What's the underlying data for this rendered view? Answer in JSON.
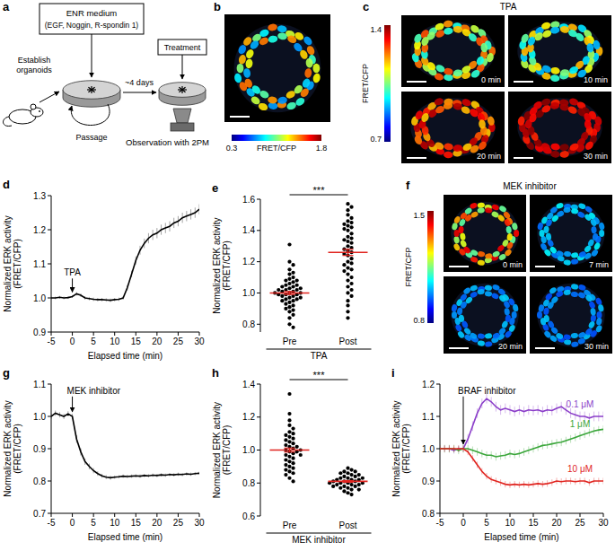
{
  "diagram": {
    "panel": "a",
    "medium": [
      "ENR medium",
      "(EGF, Noggin, R-spondin 1)"
    ],
    "establish": [
      "Establish",
      "organoids"
    ],
    "passage": "Passage",
    "interval": "~4 days",
    "treatment": "Treatment",
    "observation": "Observation with 2PM"
  },
  "images": [
    {
      "panel": "b",
      "colorbar": {
        "label": "FRET/CFP",
        "range": [
          0.3,
          1.8
        ],
        "ticks": [
          0.3,
          1.8
        ]
      }
    },
    {
      "panel": "c",
      "title": "TPA",
      "colorbar": {
        "label": "FRET/CFP",
        "range": [
          0.7,
          1.4
        ],
        "ticks": [
          0.7,
          1.4
        ]
      },
      "frames": [
        "0 min",
        "10 min",
        "20 min",
        "30 min"
      ]
    },
    {
      "panel": "f",
      "title": "MEK inhibitor",
      "colorbar": {
        "label": "FRET/CFP",
        "range": [
          0.8,
          1.5
        ],
        "ticks": [
          0.8,
          1.5
        ]
      },
      "frames": [
        "0 min",
        "7 min",
        "20 min",
        "30 min"
      ]
    }
  ],
  "chart_data": [
    {
      "panel": "d",
      "type": "line",
      "x": [
        -5,
        -4,
        -3,
        -2,
        -1,
        0,
        1,
        2,
        3,
        4,
        5,
        6,
        7,
        8,
        9,
        10,
        11,
        12,
        13,
        14,
        15,
        16,
        17,
        18,
        19,
        20,
        21,
        22,
        23,
        24,
        25,
        26,
        27,
        28,
        29,
        30
      ],
      "series": [
        {
          "color": "#000000",
          "values": [
            1.0,
            1.0,
            1.002,
            1.0,
            1.001,
            1.004,
            1.012,
            1.008,
            1.0,
            0.998,
            0.996,
            0.995,
            0.995,
            0.994,
            0.993,
            0.995,
            0.996,
            1.0,
            1.03,
            1.07,
            1.11,
            1.14,
            1.16,
            1.175,
            1.185,
            1.19,
            1.2,
            1.205,
            1.21,
            1.22,
            1.225,
            1.235,
            1.24,
            1.245,
            1.25,
            1.26
          ],
          "errors": [
            0.004,
            0.004,
            0.004,
            0.004,
            0.004,
            0.004,
            0.005,
            0.005,
            0.005,
            0.005,
            0.005,
            0.005,
            0.005,
            0.005,
            0.005,
            0.005,
            0.005,
            0.005,
            0.008,
            0.01,
            0.012,
            0.013,
            0.014,
            0.015,
            0.015,
            0.015,
            0.015,
            0.015,
            0.015,
            0.015,
            0.015,
            0.015,
            0.015,
            0.015,
            0.015,
            0.015
          ]
        }
      ],
      "xlim": [
        -5,
        30
      ],
      "ylim": [
        0.9,
        1.3
      ],
      "xticks": [
        -5,
        0,
        5,
        10,
        15,
        20,
        25,
        30
      ],
      "yticks": [
        0.9,
        {
          "value": 1,
          "label": "1.0"
        },
        1.1,
        1.2,
        1.3
      ],
      "x_label": "Elapsed time (min)",
      "y_label": "Normalized ERK activity",
      "y_label_2": "(FRET/CFP)",
      "annotations": [
        {
          "text": "TPA",
          "x": 0,
          "y": 1.065
        }
      ]
    },
    {
      "panel": "e",
      "type": "dot",
      "color": "#000000",
      "categories": [
        "Pre",
        "Post"
      ],
      "values": [
        [
          1.31,
          1.2,
          1.18,
          1.15,
          1.13,
          1.12,
          1.1,
          1.09,
          1.08,
          1.08,
          1.07,
          1.06,
          1.05,
          1.05,
          1.04,
          1.04,
          1.03,
          1.03,
          1.02,
          1.02,
          1.02,
          1.01,
          1.01,
          1.0,
          1.0,
          1.0,
          0.99,
          0.99,
          0.99,
          0.98,
          0.98,
          0.97,
          0.97,
          0.96,
          0.96,
          0.95,
          0.95,
          0.94,
          0.93,
          0.92,
          0.91,
          0.9,
          0.89,
          0.88,
          0.86,
          0.84,
          0.8,
          0.78
        ],
        [
          1.57,
          1.55,
          1.53,
          1.5,
          1.48,
          1.46,
          1.45,
          1.44,
          1.43,
          1.42,
          1.41,
          1.4,
          1.38,
          1.36,
          1.35,
          1.34,
          1.33,
          1.32,
          1.3,
          1.29,
          1.28,
          1.27,
          1.26,
          1.25,
          1.24,
          1.22,
          1.2,
          1.19,
          1.18,
          1.16,
          1.15,
          1.14,
          1.12,
          1.1,
          1.08,
          1.06,
          1.04,
          1.02,
          1.0,
          0.98,
          0.95,
          0.92,
          0.88,
          0.84
        ]
      ],
      "means": [
        1.0,
        1.26
      ],
      "errors": [
        0.01,
        0.02
      ],
      "ylim": [
        0.75,
        1.6
      ],
      "yticks": [
        0.8,
        {
          "value": 1,
          "label": "1.0"
        },
        1.2,
        1.4,
        1.6
      ],
      "x_label": "TPA",
      "y_label": "Normalized ERK activity",
      "y_label_2": "(FRET/CFP)",
      "annotations": [
        {
          "text": "***"
        }
      ]
    },
    {
      "panel": "g",
      "type": "line",
      "x": [
        -5,
        -4,
        -3,
        -2,
        -1,
        0,
        1,
        2,
        3,
        4,
        5,
        6,
        7,
        8,
        9,
        10,
        11,
        12,
        13,
        14,
        15,
        16,
        17,
        18,
        19,
        20,
        21,
        22,
        23,
        24,
        25,
        26,
        27,
        28,
        29,
        30
      ],
      "series": [
        {
          "color": "#000000",
          "values": [
            1.0,
            1.01,
            1.005,
            1.0,
            1.008,
            1.0,
            0.93,
            0.89,
            0.86,
            0.845,
            0.832,
            0.823,
            0.816,
            0.812,
            0.81,
            0.812,
            0.813,
            0.815,
            0.814,
            0.815,
            0.816,
            0.815,
            0.817,
            0.816,
            0.818,
            0.817,
            0.819,
            0.818,
            0.82,
            0.819,
            0.821,
            0.82,
            0.822,
            0.821,
            0.823,
            0.824
          ],
          "errors": [
            0.008,
            0.008,
            0.008,
            0.008,
            0.008,
            0.008,
            0.012,
            0.011,
            0.01,
            0.009,
            0.008,
            0.007,
            0.006,
            0.006,
            0.006,
            0.005,
            0.005,
            0.005,
            0.005,
            0.005,
            0.005,
            0.005,
            0.005,
            0.005,
            0.005,
            0.005,
            0.005,
            0.005,
            0.005,
            0.005,
            0.005,
            0.005,
            0.005,
            0.005,
            0.005,
            0.005
          ]
        }
      ],
      "xlim": [
        -5,
        30
      ],
      "ylim": [
        0.7,
        1.1
      ],
      "xticks": [
        -5,
        0,
        5,
        10,
        15,
        20,
        25,
        30
      ],
      "yticks": [
        0.7,
        0.8,
        0.9,
        {
          "value": 1,
          "label": "1.0"
        },
        1.1
      ],
      "x_label": "Elapsed time (min)",
      "y_label": "Normalized ERK activity",
      "y_label_2": "(FRET/CFP)",
      "annotations": [
        {
          "text": "MEK inhibitor",
          "x": 0,
          "y": 1.07
        }
      ]
    },
    {
      "panel": "h",
      "type": "dot",
      "color": "#000000",
      "categories": [
        "Pre",
        "Post"
      ],
      "values": [
        [
          1.34,
          1.22,
          1.18,
          1.15,
          1.13,
          1.11,
          1.1,
          1.09,
          1.08,
          1.07,
          1.06,
          1.05,
          1.04,
          1.03,
          1.02,
          1.02,
          1.01,
          1.0,
          1.0,
          0.99,
          0.99,
          0.98,
          0.97,
          0.97,
          0.96,
          0.95,
          0.94,
          0.93,
          0.92,
          0.91,
          0.9,
          0.89,
          0.88,
          0.87,
          0.86,
          0.85,
          0.83,
          0.81
        ],
        [
          0.89,
          0.88,
          0.87,
          0.87,
          0.86,
          0.86,
          0.85,
          0.85,
          0.84,
          0.84,
          0.83,
          0.83,
          0.83,
          0.82,
          0.82,
          0.82,
          0.81,
          0.81,
          0.81,
          0.8,
          0.8,
          0.8,
          0.8,
          0.79,
          0.79,
          0.79,
          0.78,
          0.78,
          0.78,
          0.77,
          0.77,
          0.76,
          0.76,
          0.75,
          0.74,
          0.73
        ]
      ],
      "means": [
        1.0,
        0.81
      ],
      "errors": [
        0.012,
        0.005
      ],
      "ylim": [
        0.6,
        1.4
      ],
      "yticks": [
        0.6,
        0.8,
        {
          "value": 1,
          "label": "1.0"
        },
        1.2,
        1.4
      ],
      "x_label": "MEK inhibitor",
      "y_label": "Normalized ERK activity",
      "y_label_2": "(FRET/CFP)",
      "annotations": [
        {
          "text": "***"
        }
      ]
    },
    {
      "panel": "i",
      "type": "line",
      "x": [
        -5,
        -4,
        -3,
        -2,
        -1,
        0,
        1,
        2,
        3,
        4,
        5,
        6,
        7,
        8,
        9,
        10,
        11,
        12,
        13,
        14,
        15,
        16,
        17,
        18,
        19,
        20,
        21,
        22,
        23,
        24,
        25,
        26,
        27,
        28,
        29,
        30
      ],
      "series": [
        {
          "name": "0.1 μM",
          "color": "#8b3ec9",
          "values": [
            1.0,
            1.0,
            1.0,
            0.995,
            1.0,
            1.0,
            1.03,
            1.07,
            1.11,
            1.14,
            1.155,
            1.145,
            1.13,
            1.12,
            1.125,
            1.12,
            1.115,
            1.12,
            1.115,
            1.12,
            1.118,
            1.12,
            1.115,
            1.12,
            1.118,
            1.125,
            1.13,
            1.12,
            1.11,
            1.105,
            1.1,
            1.1,
            1.095,
            1.1,
            1.1,
            1.1
          ],
          "errors": [
            0.01,
            0.01,
            0.01,
            0.01,
            0.01,
            0.01,
            0.015,
            0.015,
            0.015,
            0.015,
            0.015,
            0.015,
            0.015,
            0.015,
            0.015,
            0.015,
            0.015,
            0.015,
            0.015,
            0.015,
            0.015,
            0.015,
            0.015,
            0.015,
            0.015,
            0.015,
            0.015,
            0.015,
            0.015,
            0.015,
            0.015,
            0.015,
            0.015,
            0.015,
            0.015,
            0.015
          ]
        },
        {
          "name": "1 μM",
          "color": "#3aa63a",
          "values": [
            1.0,
            1.0,
            1.0,
            1.0,
            0.995,
            1.0,
            1.0,
            0.995,
            0.99,
            0.985,
            0.98,
            0.98,
            0.975,
            0.978,
            0.98,
            0.985,
            0.982,
            0.985,
            0.99,
            0.995,
            1.0,
            1.005,
            1.01,
            1.012,
            1.015,
            1.018,
            1.02,
            1.025,
            1.03,
            1.035,
            1.04,
            1.045,
            1.05,
            1.055,
            1.058,
            1.06
          ],
          "errors": [
            0.012,
            0.012,
            0.012,
            0.012,
            0.012,
            0.012,
            0.012,
            0.012,
            0.012,
            0.012,
            0.012,
            0.012,
            0.012,
            0.012,
            0.012,
            0.012,
            0.012,
            0.012,
            0.012,
            0.012,
            0.012,
            0.012,
            0.012,
            0.012,
            0.012,
            0.012,
            0.012,
            0.012,
            0.012,
            0.012,
            0.012,
            0.012,
            0.012,
            0.012,
            0.012,
            0.012
          ]
        },
        {
          "name": "10 μM",
          "color": "#e0241f",
          "values": [
            1.0,
            1.0,
            1.0,
            1.0,
            1.0,
            1.0,
            0.99,
            0.97,
            0.95,
            0.93,
            0.915,
            0.905,
            0.9,
            0.895,
            0.89,
            0.888,
            0.89,
            0.888,
            0.89,
            0.888,
            0.89,
            0.892,
            0.89,
            0.892,
            0.895,
            0.9,
            0.898,
            0.9,
            0.9,
            0.898,
            0.9,
            0.9,
            0.895,
            0.9,
            0.9,
            0.9
          ],
          "errors": [
            0.01,
            0.01,
            0.01,
            0.01,
            0.01,
            0.01,
            0.01,
            0.01,
            0.01,
            0.01,
            0.01,
            0.01,
            0.01,
            0.01,
            0.01,
            0.01,
            0.01,
            0.01,
            0.01,
            0.01,
            0.01,
            0.01,
            0.01,
            0.01,
            0.01,
            0.01,
            0.01,
            0.01,
            0.01,
            0.01,
            0.01,
            0.01,
            0.01,
            0.01,
            0.01,
            0.01
          ]
        }
      ],
      "xlim": [
        -5,
        30
      ],
      "ylim": [
        0.8,
        1.2
      ],
      "xticks": [
        -5,
        0,
        5,
        10,
        15,
        20,
        25,
        30
      ],
      "yticks": [
        0.8,
        0.9,
        {
          "value": 1,
          "label": "1.0"
        },
        1.1,
        1.2
      ],
      "x_label": "Elapsed time (min)",
      "y_label": "Normalized ERK activity",
      "y_label_2": "(FRET/CFP)",
      "annotations": [
        {
          "text": "BRAF inhibitor",
          "x": 0,
          "y": 1.17
        }
      ]
    }
  ]
}
